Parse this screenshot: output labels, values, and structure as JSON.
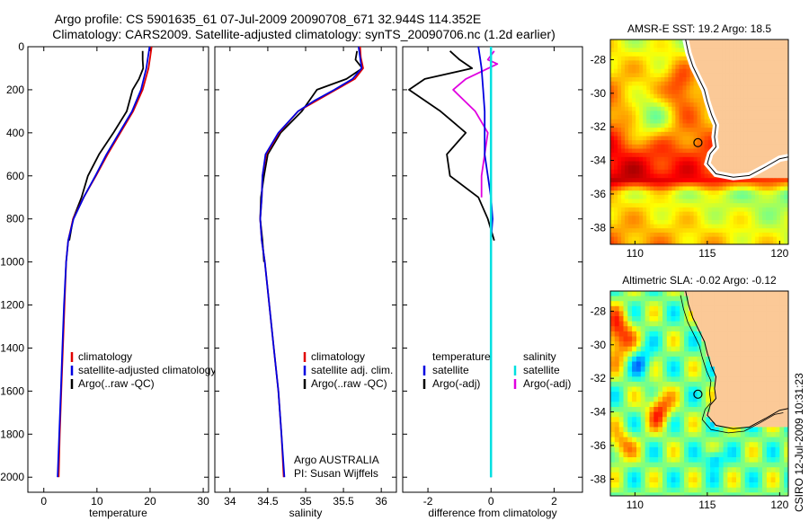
{
  "header": {
    "line1": "Argo profile: CS 5901635_61 07-Jul-2009 20090708_671 32.944S 114.352E",
    "line2": "Climatology: CARS2009. Satellite-adjusted climatology: synTS_20090706.nc (1.2d earlier)"
  },
  "footer_stamp": "CSIRO 12-Jul-2009 10:31:23",
  "colors": {
    "climatology": "#e00000",
    "satellite": "#0000e0",
    "argo": "#000000",
    "salinity_satellite": "#00e0e0",
    "salinity_argo": "#e000e0",
    "land": "#fbc997"
  },
  "chart_data": [
    {
      "id": "temperature",
      "type": "line",
      "xlabel": "temperature",
      "xlim": [
        -3,
        31
      ],
      "xticks": [
        0,
        10,
        20,
        30
      ],
      "ylim": [
        0,
        2070
      ],
      "yticks": [
        0,
        200,
        400,
        600,
        800,
        1000,
        1200,
        1400,
        1600,
        1800,
        2000
      ],
      "y_reversed": true,
      "legend": [
        "climatology",
        "satellite-adjusted climatology",
        "Argo(..raw -QC)"
      ],
      "series": [
        {
          "name": "climatology",
          "points": [
            [
              20.3,
              0
            ],
            [
              20,
              50
            ],
            [
              19.7,
              100
            ],
            [
              18.6,
              200
            ],
            [
              16.8,
              300
            ],
            [
              14.4,
              400
            ],
            [
              12,
              500
            ],
            [
              9.8,
              600
            ],
            [
              7.5,
              700
            ],
            [
              5.5,
              800
            ],
            [
              4.6,
              900
            ],
            [
              4.2,
              1000
            ],
            [
              3.9,
              1200
            ],
            [
              3.6,
              1400
            ],
            [
              3.3,
              1600
            ],
            [
              3,
              1800
            ],
            [
              2.8,
              2000
            ]
          ]
        },
        {
          "name": "satellite-adjusted climatology",
          "points": [
            [
              19.9,
              0
            ],
            [
              19.6,
              50
            ],
            [
              19.3,
              100
            ],
            [
              18.3,
              200
            ],
            [
              16.6,
              300
            ],
            [
              14.2,
              400
            ],
            [
              11.8,
              500
            ],
            [
              9.7,
              600
            ],
            [
              7.5,
              700
            ],
            [
              5.6,
              800
            ],
            [
              4.6,
              900
            ],
            [
              4.2,
              1000
            ],
            [
              3.8,
              1200
            ],
            [
              3.5,
              1400
            ],
            [
              3.2,
              1600
            ],
            [
              2.9,
              1800
            ],
            [
              2.6,
              2000
            ]
          ]
        },
        {
          "name": "Argo(..raw -QC)",
          "points": [
            [
              18.6,
              20
            ],
            [
              18.6,
              60
            ],
            [
              18.7,
              100
            ],
            [
              17.9,
              150
            ],
            [
              16.7,
              200
            ],
            [
              15.6,
              300
            ],
            [
              13.1,
              400
            ],
            [
              10.4,
              500
            ],
            [
              8.3,
              600
            ],
            [
              7.1,
              700
            ],
            [
              5.5,
              800
            ],
            [
              4.8,
              900
            ]
          ]
        }
      ]
    },
    {
      "id": "salinity",
      "type": "line",
      "xlabel": "salinity",
      "xlim": [
        33.8,
        36.2
      ],
      "xticks": [
        34,
        34.5,
        35,
        35.5,
        36
      ],
      "ylim": [
        0,
        2070
      ],
      "y_reversed": true,
      "legend": [
        "climatology",
        "satellite adj. clim.",
        "Argo(..raw -QC)"
      ],
      "annotation": [
        "Argo AUSTRALIA",
        "PI: Susan Wijffels"
      ],
      "series": [
        {
          "name": "climatology",
          "points": [
            [
              35.72,
              0
            ],
            [
              35.73,
              50
            ],
            [
              35.76,
              100
            ],
            [
              35.65,
              150
            ],
            [
              35.4,
              200
            ],
            [
              35.15,
              250
            ],
            [
              34.9,
              300
            ],
            [
              34.65,
              400
            ],
            [
              34.48,
              500
            ],
            [
              34.43,
              600
            ],
            [
              34.42,
              700
            ],
            [
              34.4,
              800
            ],
            [
              34.42,
              900
            ],
            [
              34.46,
              1000
            ],
            [
              34.52,
              1200
            ],
            [
              34.58,
              1400
            ],
            [
              34.64,
              1600
            ],
            [
              34.68,
              1800
            ],
            [
              34.71,
              2000
            ]
          ]
        },
        {
          "name": "satellite adj. clim.",
          "points": [
            [
              35.7,
              0
            ],
            [
              35.72,
              50
            ],
            [
              35.74,
              100
            ],
            [
              35.62,
              150
            ],
            [
              35.38,
              200
            ],
            [
              35.12,
              250
            ],
            [
              34.9,
              300
            ],
            [
              34.64,
              400
            ],
            [
              34.47,
              500
            ],
            [
              34.43,
              600
            ],
            [
              34.42,
              700
            ],
            [
              34.4,
              800
            ],
            [
              34.42,
              900
            ],
            [
              34.46,
              1000
            ],
            [
              34.52,
              1200
            ],
            [
              34.58,
              1400
            ],
            [
              34.64,
              1600
            ],
            [
              34.68,
              1800
            ],
            [
              34.72,
              2000
            ]
          ]
        },
        {
          "name": "Argo(..raw -QC)",
          "points": [
            [
              35.68,
              20
            ],
            [
              35.66,
              60
            ],
            [
              35.75,
              100
            ],
            [
              35.54,
              150
            ],
            [
              35.15,
              200
            ],
            [
              34.95,
              300
            ],
            [
              34.67,
              400
            ],
            [
              34.5,
              500
            ],
            [
              34.45,
              600
            ],
            [
              34.41,
              700
            ],
            [
              34.4,
              800
            ],
            [
              34.43,
              900
            ],
            [
              34.45,
              1000
            ]
          ]
        }
      ]
    },
    {
      "id": "difference",
      "type": "line",
      "xlabel": "difference from climatology",
      "xlim": [
        -2.8,
        2.9
      ],
      "xticks": [
        -2,
        0,
        2
      ],
      "ylim": [
        0,
        2070
      ],
      "y_reversed": true,
      "legend_headers": [
        "temperature",
        "salinity"
      ],
      "legend": [
        "satellite",
        "Argo(-adj)",
        "satellite",
        "Argo(-adj)"
      ],
      "series": [
        {
          "name": "satellite",
          "quantity": "temperature",
          "points": [
            [
              -0.4,
              0
            ],
            [
              -0.35,
              50
            ],
            [
              -0.3,
              100
            ],
            [
              -0.25,
              200
            ],
            [
              -0.2,
              300
            ],
            [
              -0.2,
              400
            ],
            [
              -0.2,
              500
            ],
            [
              -0.1,
              600
            ],
            [
              0,
              700
            ],
            [
              0.05,
              800
            ],
            [
              0,
              900
            ],
            [
              0,
              1000
            ],
            [
              0,
              1200
            ],
            [
              0,
              1400
            ],
            [
              0,
              1600
            ],
            [
              0,
              1800
            ],
            [
              0,
              2000
            ]
          ]
        },
        {
          "name": "Argo(-adj)",
          "quantity": "temperature",
          "points": [
            [
              -1.3,
              20
            ],
            [
              -1,
              60
            ],
            [
              -0.6,
              100
            ],
            [
              -2.1,
              150
            ],
            [
              -2.6,
              200
            ],
            [
              -1.6,
              300
            ],
            [
              -0.8,
              400
            ],
            [
              -1.4,
              500
            ],
            [
              -1.3,
              600
            ],
            [
              -0.4,
              700
            ],
            [
              -0.1,
              800
            ],
            [
              0.1,
              900
            ]
          ]
        },
        {
          "name": "satellite",
          "quantity": "salinity",
          "points": [
            [
              0,
              0
            ],
            [
              0,
              100
            ],
            [
              0,
              300
            ],
            [
              0,
              500
            ],
            [
              0,
              1000
            ],
            [
              0,
              1500
            ],
            [
              0,
              2000
            ]
          ]
        },
        {
          "name": "Argo(-adj)",
          "quantity": "salinity",
          "points": [
            [
              0.1,
              20
            ],
            [
              -0.1,
              60
            ],
            [
              0.2,
              80
            ],
            [
              -0.8,
              150
            ],
            [
              -1.2,
              200
            ],
            [
              -0.5,
              300
            ],
            [
              -0.1,
              400
            ],
            [
              -0.2,
              500
            ],
            [
              -0.3,
              600
            ],
            [
              -0.3,
              700
            ]
          ]
        }
      ]
    },
    {
      "id": "sst-map",
      "type": "heatmap",
      "title": "AMSR-E SST: 19.2  Argo: 18.5",
      "xticks": [
        110,
        115,
        120
      ],
      "yticks": [
        -28,
        -30,
        -32,
        -34,
        -36,
        -38
      ],
      "xlim": [
        108.3,
        120.6
      ],
      "ylim": [
        -39,
        -26.8
      ],
      "float_position": [
        114.352,
        -32.944
      ]
    },
    {
      "id": "sla-map",
      "type": "heatmap",
      "title": "Altimetric SLA: -0.02  Argo: -0.12",
      "xticks": [
        110,
        115,
        120
      ],
      "yticks": [
        -28,
        -30,
        -32,
        -34,
        -36,
        -38
      ],
      "xlim": [
        108.3,
        120.6
      ],
      "ylim": [
        -39,
        -26.8
      ],
      "float_position": [
        114.352,
        -32.944
      ]
    }
  ]
}
